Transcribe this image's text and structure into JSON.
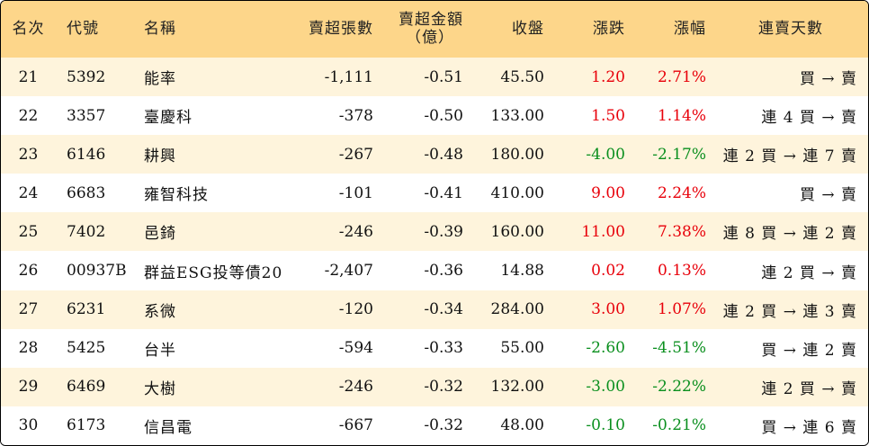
{
  "colors": {
    "header_bg": "#fdd68a",
    "stripe_bg": "#fef4dc",
    "up": "#e8000a",
    "down": "#0a8f1e"
  },
  "headers": {
    "rank": "名次",
    "code": "代號",
    "name": "名稱",
    "net_sell_lots": "賣超張數",
    "net_sell_amount": "賣超金額",
    "net_sell_amount_unit": "（億）",
    "close": "收盤",
    "change": "漲跌",
    "change_pct": "漲幅",
    "streak": "連賣天數"
  },
  "rows": [
    {
      "rank": "21",
      "code": "5392",
      "name": "能率",
      "lots": "-1,111",
      "amount": "-0.51",
      "close": "45.50",
      "change": "1.20",
      "pct": "2.71%",
      "dir": "up",
      "streak": "買 → 賣"
    },
    {
      "rank": "22",
      "code": "3357",
      "name": "臺慶科",
      "lots": "-378",
      "amount": "-0.50",
      "close": "133.00",
      "change": "1.50",
      "pct": "1.14%",
      "dir": "up",
      "streak": "連 4 買 → 賣"
    },
    {
      "rank": "23",
      "code": "6146",
      "name": "耕興",
      "lots": "-267",
      "amount": "-0.48",
      "close": "180.00",
      "change": "-4.00",
      "pct": "-2.17%",
      "dir": "down",
      "streak": "連 2 買 → 連 7 賣"
    },
    {
      "rank": "24",
      "code": "6683",
      "name": "雍智科技",
      "lots": "-101",
      "amount": "-0.41",
      "close": "410.00",
      "change": "9.00",
      "pct": "2.24%",
      "dir": "up",
      "streak": "買 → 賣"
    },
    {
      "rank": "25",
      "code": "7402",
      "name": "邑錡",
      "lots": "-246",
      "amount": "-0.39",
      "close": "160.00",
      "change": "11.00",
      "pct": "7.38%",
      "dir": "up",
      "streak": "連 8 買 → 連 2 賣"
    },
    {
      "rank": "26",
      "code": "00937B",
      "name": "群益ESG投等債20",
      "lots": "-2,407",
      "amount": "-0.36",
      "close": "14.88",
      "change": "0.02",
      "pct": "0.13%",
      "dir": "up",
      "streak": "連 2 買 → 賣"
    },
    {
      "rank": "27",
      "code": "6231",
      "name": "系微",
      "lots": "-120",
      "amount": "-0.34",
      "close": "284.00",
      "change": "3.00",
      "pct": "1.07%",
      "dir": "up",
      "streak": "連 2 買 → 連 3 賣"
    },
    {
      "rank": "28",
      "code": "5425",
      "name": "台半",
      "lots": "-594",
      "amount": "-0.33",
      "close": "55.00",
      "change": "-2.60",
      "pct": "-4.51%",
      "dir": "down",
      "streak": "買 → 連 2 賣"
    },
    {
      "rank": "29",
      "code": "6469",
      "name": "大樹",
      "lots": "-246",
      "amount": "-0.32",
      "close": "132.00",
      "change": "-3.00",
      "pct": "-2.22%",
      "dir": "down",
      "streak": "連 2 買 → 賣"
    },
    {
      "rank": "30",
      "code": "6173",
      "name": "信昌電",
      "lots": "-667",
      "amount": "-0.32",
      "close": "48.00",
      "change": "-0.10",
      "pct": "-0.21%",
      "dir": "down",
      "streak": "買 → 連 6 賣"
    }
  ]
}
